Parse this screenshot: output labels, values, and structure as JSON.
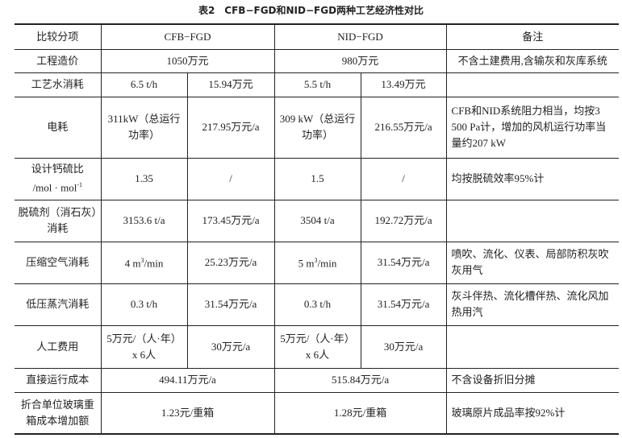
{
  "title": "表2　CFB−FGD和NID−FGD两种工艺经济性对比",
  "header": {
    "item": "比较分项",
    "cfb": "CFB−FGD",
    "nid": "NID−FGD",
    "note": "备注"
  },
  "rows": [
    {
      "item": "工程造价",
      "cfb_total": "1050万元",
      "nid_total": "980万元",
      "note": "不含土建费用,含输灰和灰库系统"
    },
    {
      "item": "工艺水消耗",
      "cfb_qty": "6.5 t/h",
      "cfb_cost": "15.94万元",
      "nid_qty": "5.5 t/h",
      "nid_cost": "13.49万元",
      "note": ""
    },
    {
      "item": "电耗",
      "cfb_qty": "311kW（总运行功率）",
      "cfb_cost": "217.95万元/a",
      "nid_qty": "309 kW（总运行功率）",
      "nid_cost": "216.55万元/a",
      "note": "CFB和NID系统阻力相当，均按3 500 Pa计，增加的风机运行功率当量约207 kW"
    },
    {
      "item": "设计钙硫比",
      "item_unit": "/mol · mol",
      "item_unit_sup": "-1",
      "cfb_qty": "1.35",
      "cfb_cost": "/",
      "nid_qty": "1.5",
      "nid_cost": "/",
      "note": "均按脱硫效率95%计"
    },
    {
      "item": "脱硫剂（消石灰）消耗",
      "cfb_qty": "3153.6 t/a",
      "cfb_cost": "173.45万元/a",
      "nid_qty": "3504 t/a",
      "nid_cost": "192.72万元/a",
      "note": ""
    },
    {
      "item": "压缩空气消耗",
      "cfb_qty": "4 m",
      "cfb_qty_sup": "3",
      "cfb_qty_tail": "/min",
      "cfb_cost": "25.23万元/a",
      "nid_qty": "5 m",
      "nid_qty_sup": "3",
      "nid_qty_tail": "/min",
      "nid_cost": "31.54万元/a",
      "note": "喷吹、流化、仪表、局部防积灰吹灰用气"
    },
    {
      "item": "低压蒸汽消耗",
      "cfb_qty": "0.3 t/h",
      "cfb_cost": "31.54万元/a",
      "nid_qty": "0.3 t/h",
      "nid_cost": "31.54万元/a",
      "note": "灰斗伴热、流化槽伴热、流化风加热用汽"
    },
    {
      "item": "人工费用",
      "cfb_qty": "5万元/（人·年）x 6人",
      "cfb_cost": "30万元/a",
      "nid_qty": "5万元/（人·年）x 6人",
      "nid_cost": "30万元/a",
      "note": ""
    },
    {
      "item": "直接运行成本",
      "cfb_total": "494.11万元/a",
      "nid_total": "515.84万元/a",
      "note": "不含设备折旧分摊"
    },
    {
      "item": "折合单位玻璃重箱成本增加额",
      "cfb_total": "1.23元/重箱",
      "nid_total": "1.28元/重箱",
      "note": "玻璃原片成品率按92%计"
    }
  ]
}
